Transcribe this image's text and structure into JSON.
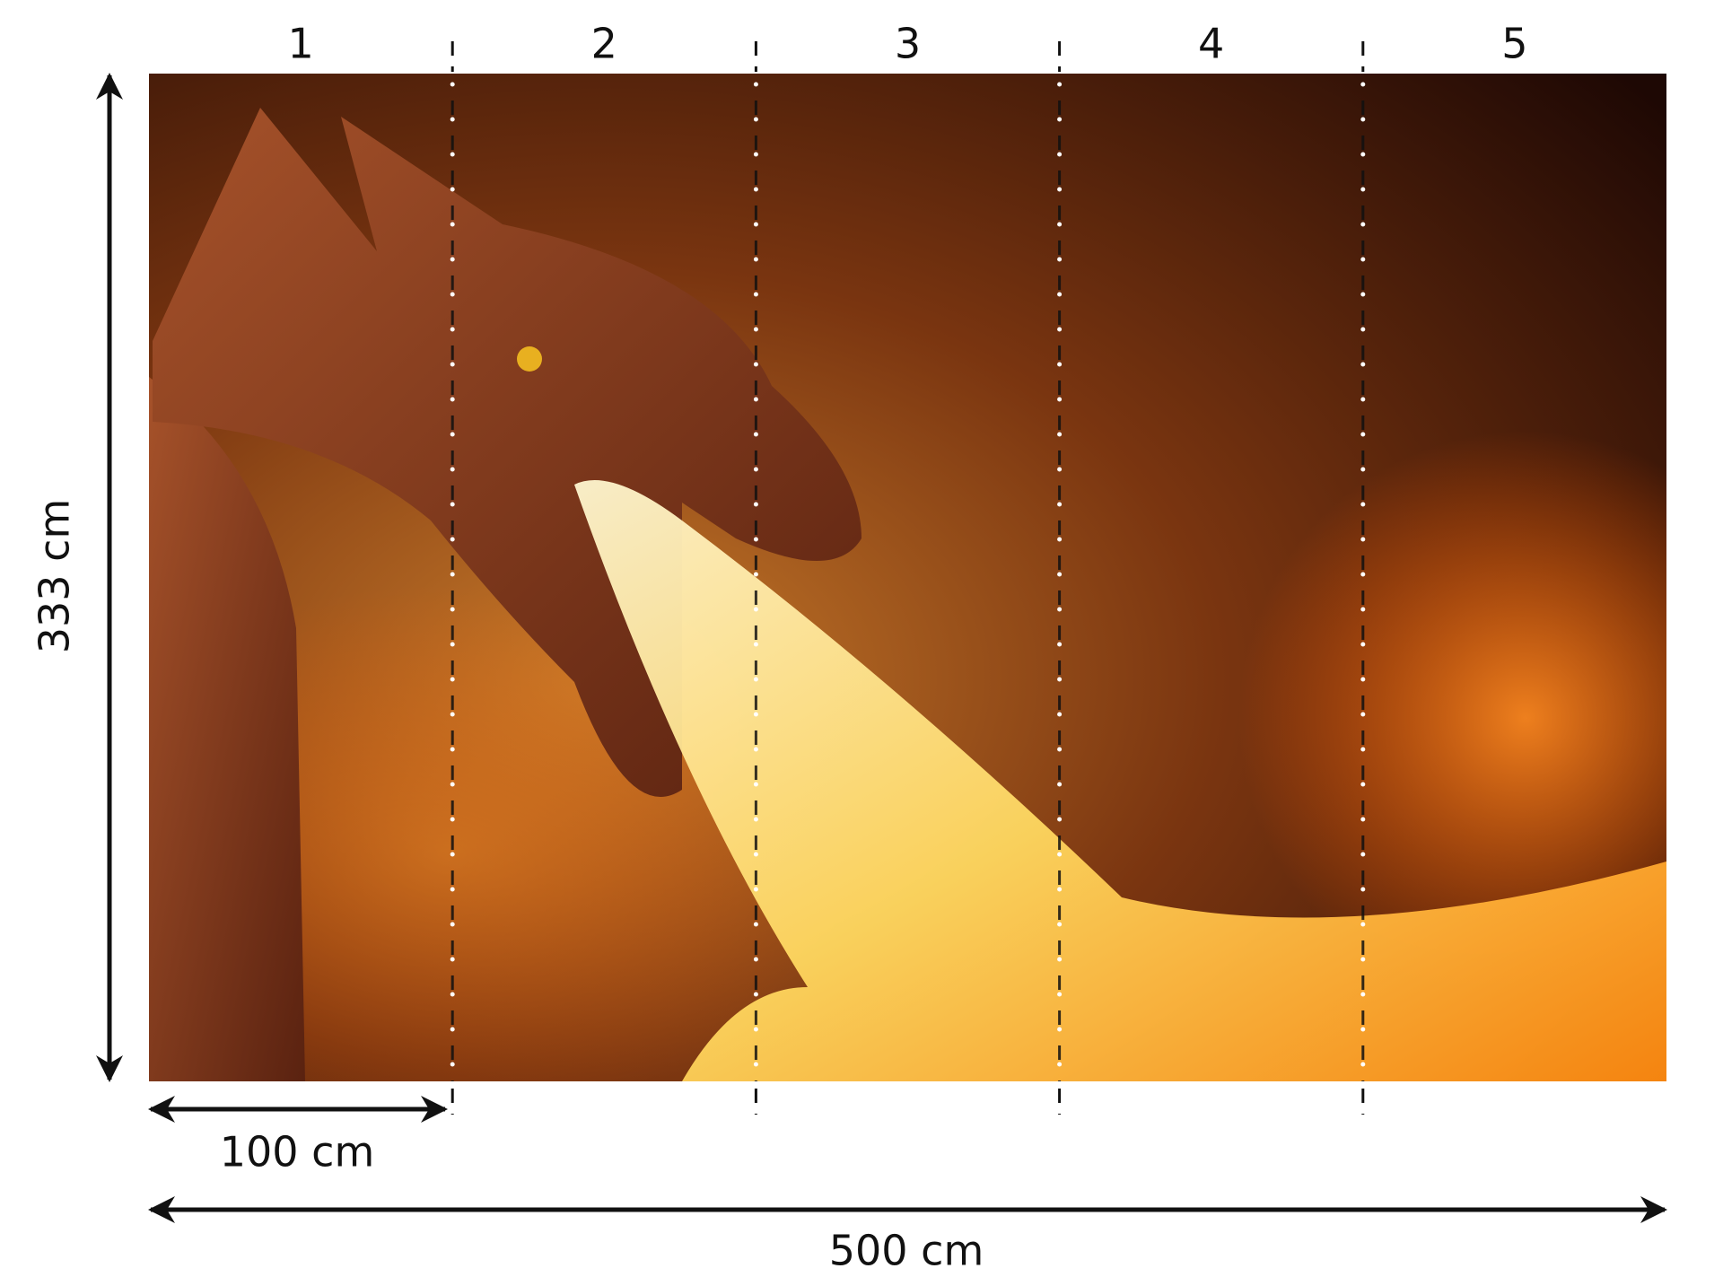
{
  "panels": [
    "1",
    "2",
    "3",
    "4",
    "5"
  ],
  "dimensions": {
    "height": "333 cm",
    "panel_width": "100 cm",
    "total_width": "500 cm"
  }
}
